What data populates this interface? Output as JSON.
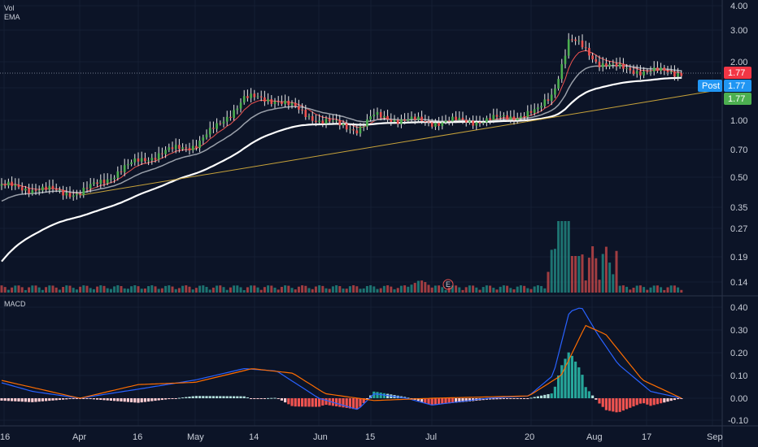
{
  "labels": {
    "vol": "Vol",
    "ema": "EMA",
    "macd": "MACD"
  },
  "price_axis": [
    "4.00",
    "3.00",
    "2.00",
    "1.50",
    "1.00",
    "0.70",
    "0.50",
    "0.35",
    "0.27",
    "0.19",
    "0.14"
  ],
  "macd_axis": [
    "0.40",
    "0.30",
    "0.20",
    "0.10",
    "0.00",
    "-0.10"
  ],
  "time_axis": [
    "16",
    "Apr",
    "16",
    "May",
    "14",
    "Jun",
    "15",
    "Jul",
    "20",
    "Aug",
    "17",
    "Sep"
  ],
  "badges": [
    {
      "text": "1.77",
      "color": "#f23645"
    },
    {
      "text": "Post",
      "color": "#2196f3"
    },
    {
      "text": "1.77",
      "color": "#2196f3"
    },
    {
      "text": "1.77",
      "color": "#4caf50"
    }
  ],
  "earnings_marker": "E",
  "colors": {
    "background": "#0c1427",
    "up": "#26a69a",
    "down": "#ef5350",
    "ema_fast": "#ef5350",
    "ema_mid": "#d8d8d8",
    "ema_slow": "#9aa0aa",
    "ema_long": "#ffffff",
    "trendline": "#c8a33a",
    "macd_line": "#2962ff",
    "signal_line": "#ff6d00"
  },
  "chart_data": [
    {
      "type": "line",
      "title": "",
      "scale": "log",
      "ylim": [
        0.12,
        4.3
      ],
      "x": [
        "16",
        "Apr",
        "16",
        "May",
        "14",
        "Jun",
        "15",
        "Jul",
        "20",
        "Aug",
        "17",
        "Sep"
      ],
      "series": [
        {
          "name": "",
          "values": [
            0.46,
            0.44,
            0.6,
            0.75,
            1.3,
            1.05,
            1.0,
            0.98,
            1.2,
            2.4,
            1.8,
            1.77
          ]
        }
      ],
      "last_price": 1.77
    },
    {
      "type": "bar",
      "title": "",
      "x": [
        "16",
        "Apr",
        "16",
        "May",
        "14",
        "Jun",
        "15",
        "Jul",
        "20",
        "Aug",
        "17",
        "Sep"
      ],
      "ylim": [
        -0.12,
        0.43
      ],
      "series": [
        {
          "name": "",
          "values": [
            0.07,
            0.01,
            0.04,
            0.08,
            0.13,
            0.02,
            -0.02,
            0.01,
            0.05,
            0.38,
            0.05,
            -0.01
          ]
        },
        {
          "name": "",
          "values": [
            0.05,
            0.02,
            0.03,
            0.06,
            0.12,
            0.05,
            0.0,
            0.0,
            0.03,
            0.3,
            0.12,
            0.0
          ]
        },
        {
          "name": "",
          "values": [
            0.0,
            -0.01,
            0.01,
            0.02,
            0.04,
            -0.03,
            0.01,
            -0.03,
            0.02,
            0.17,
            -0.07,
            -0.02
          ]
        }
      ]
    }
  ]
}
